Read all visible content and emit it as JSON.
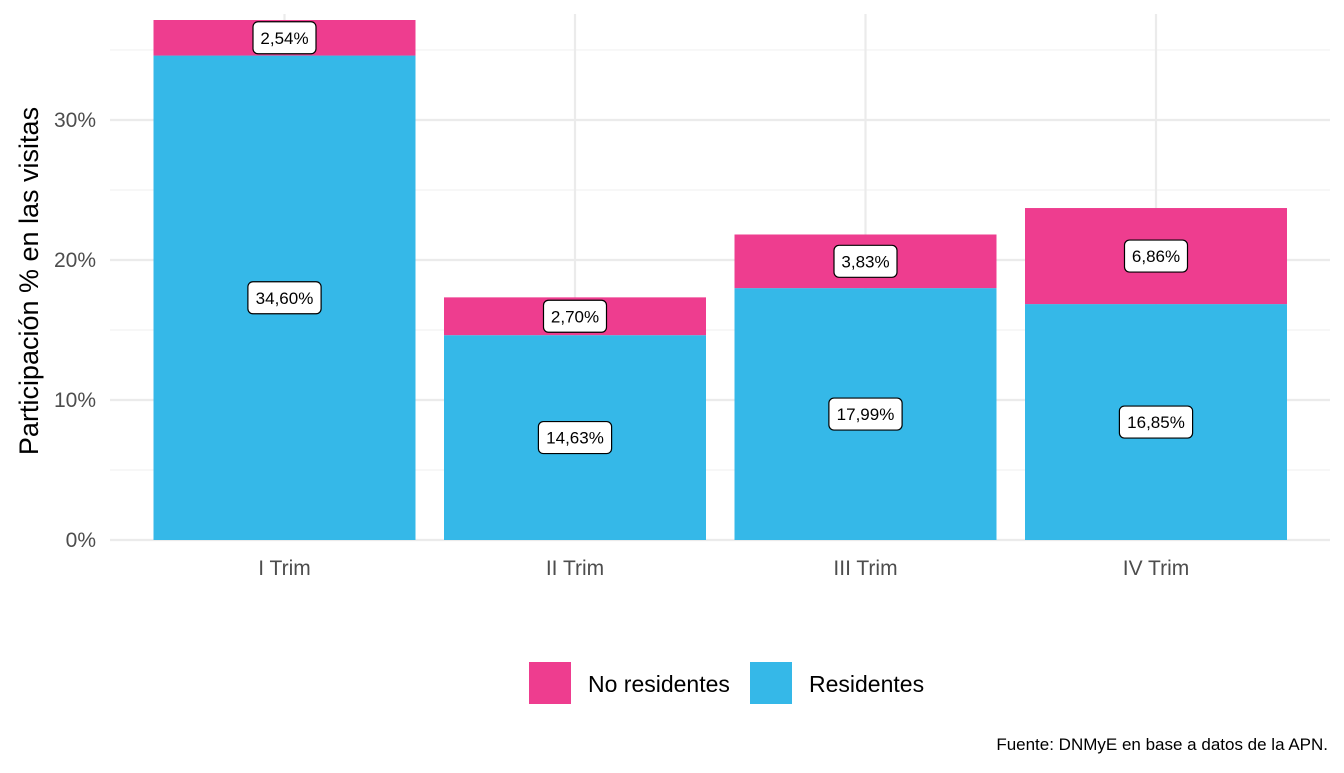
{
  "chart_data": {
    "type": "bar",
    "stacked": true,
    "categories": [
      "I Trim",
      "II Trim",
      "III Trim",
      "IV Trim"
    ],
    "series": [
      {
        "name": "Residentes",
        "values": [
          34.6,
          14.63,
          17.99,
          16.85
        ],
        "labels": [
          "34,60%",
          "14,63%",
          "17,99%",
          "16,85%"
        ],
        "color": "#35b8e8"
      },
      {
        "name": "No residentes",
        "values": [
          2.54,
          2.7,
          3.83,
          6.86
        ],
        "labels": [
          "2,54%",
          "2,70%",
          "3,83%",
          "6,86%"
        ],
        "color": "#ee3d8f"
      }
    ],
    "ylabel": "Participación % en las visitas",
    "xlabel": "",
    "ylim": [
      0,
      37.14
    ],
    "yticks": [
      0,
      10,
      20,
      30
    ],
    "ytick_labels": [
      "0%",
      "10%",
      "20%",
      "30%"
    ],
    "grid": true,
    "legend_position": "bottom",
    "legend_order": [
      "No residentes",
      "Residentes"
    ],
    "caption": "Fuente: DNMyE en base a datos de la APN."
  }
}
